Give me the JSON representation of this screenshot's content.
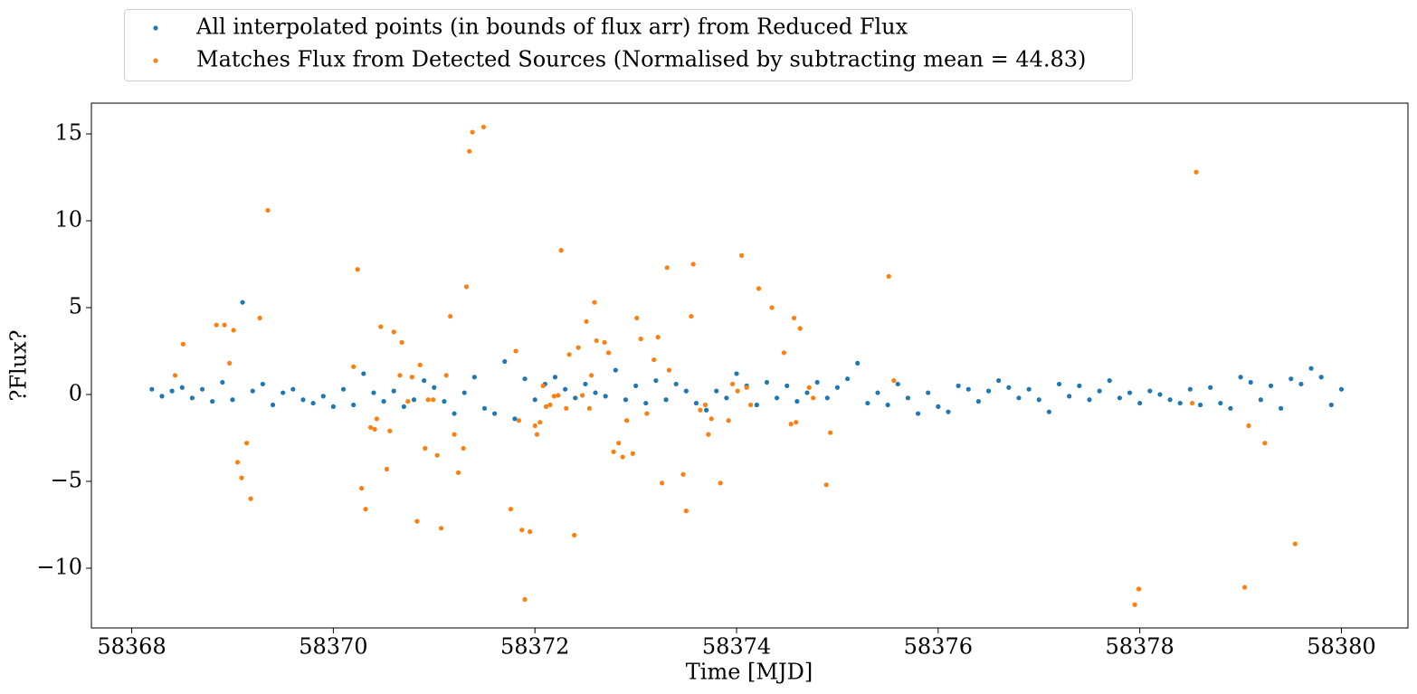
{
  "chart_data": {
    "type": "scatter",
    "xlabel": "Time [MJD]",
    "ylabel": "?Flux?",
    "xlim": [
      58367.6,
      58380.66
    ],
    "ylim": [
      -13.44,
      16.77
    ],
    "xticks": [
      58368,
      58370,
      58372,
      58374,
      58376,
      58378,
      58380
    ],
    "yticks": [
      {
        "value": -10,
        "label": "−10"
      },
      {
        "value": -5,
        "label": "−5"
      },
      0,
      5,
      10,
      15
    ],
    "legend": "upper center",
    "series": [
      {
        "name": "All interpolated points (in bounds of flux arr) from Reduced Flux",
        "color": "#1f77b4",
        "x": [
          58368.2,
          58368.3,
          58368.4,
          58368.5,
          58368.6,
          58368.7,
          58368.8,
          58368.9,
          58369.0,
          58369.1,
          58369.2,
          58369.3,
          58369.4,
          58369.5,
          58369.6,
          58369.7,
          58369.8,
          58369.9,
          58370.0,
          58370.1,
          58370.2,
          58370.3,
          58370.4,
          58370.5,
          58370.6,
          58370.7,
          58370.8,
          58370.9,
          58371.0,
          58371.1,
          58371.2,
          58371.3,
          58371.4,
          58371.5,
          58371.6,
          58371.7,
          58371.8,
          58371.9,
          58372.0,
          58372.1,
          58372.2,
          58372.3,
          58372.4,
          58372.5,
          58372.6,
          58372.7,
          58372.8,
          58372.9,
          58373.0,
          58373.1,
          58373.2,
          58373.3,
          58373.4,
          58373.5,
          58373.6,
          58373.7,
          58373.8,
          58373.9,
          58374.0,
          58374.1,
          58374.2,
          58374.3,
          58374.4,
          58374.5,
          58374.6,
          58374.7,
          58374.8,
          58374.9,
          58375.0,
          58375.1,
          58375.2,
          58375.3,
          58375.4,
          58375.5,
          58375.6,
          58375.7,
          58375.8,
          58375.9,
          58376.0,
          58376.1,
          58376.2,
          58376.3,
          58376.4,
          58376.5,
          58376.6,
          58376.7,
          58376.8,
          58376.9,
          58377.0,
          58377.1,
          58377.2,
          58377.3,
          58377.4,
          58377.5,
          58377.6,
          58377.7,
          58377.8,
          58377.9,
          58378.0,
          58378.1,
          58378.2,
          58378.3,
          58378.4,
          58378.5,
          58378.6,
          58378.7,
          58378.8,
          58378.9,
          58379.0,
          58379.1,
          58379.2,
          58379.3,
          58379.4,
          58379.5,
          58379.6,
          58379.7,
          58379.8,
          58379.9,
          58380.0
        ],
        "values": [
          0.3,
          -0.1,
          0.2,
          0.4,
          -0.2,
          0.3,
          -0.4,
          0.7,
          -0.3,
          5.3,
          0.2,
          0.6,
          -0.6,
          0.1,
          0.3,
          -0.3,
          -0.5,
          -0.1,
          -0.7,
          0.3,
          -0.6,
          1.2,
          0.1,
          -0.4,
          0.2,
          -0.7,
          -0.3,
          0.8,
          0.4,
          -0.4,
          -1.1,
          0.1,
          1.0,
          -0.8,
          -1.1,
          1.9,
          -1.4,
          0.9,
          -0.3,
          0.6,
          1.0,
          0.3,
          -0.2,
          0.6,
          0.1,
          -0.1,
          1.4,
          -0.3,
          0.5,
          -0.5,
          0.8,
          -0.3,
          0.6,
          0.2,
          -0.5,
          -0.9,
          0.2,
          -0.2,
          1.2,
          0.5,
          -0.6,
          0.7,
          -0.2,
          0.5,
          -0.4,
          0.1,
          0.7,
          -0.2,
          0.4,
          0.9,
          1.8,
          -0.5,
          0.1,
          -0.6,
          0.6,
          -0.2,
          -1.1,
          0.1,
          -0.7,
          -1.0,
          0.5,
          0.3,
          -0.4,
          0.2,
          0.8,
          0.4,
          -0.2,
          0.3,
          -0.3,
          -1.0,
          0.6,
          -0.1,
          0.5,
          -0.3,
          0.2,
          0.8,
          -0.2,
          0.1,
          -0.5,
          0.2,
          0.0,
          -0.3,
          -0.5,
          0.3,
          -0.6,
          0.4,
          -0.5,
          -0.8,
          1.0,
          0.7,
          -0.3,
          0.5,
          -0.8,
          0.9,
          0.6,
          1.5,
          1.0,
          -0.6,
          0.3
        ]
      },
      {
        "name": "Matches Flux from Detected Sources (Normalised by subtracting mean = 44.83)",
        "color": "#ff7f0e",
        "x": [
          58368.43,
          58368.51,
          58368.84,
          58368.92,
          58368.97,
          58369.01,
          58369.05,
          58369.09,
          58369.14,
          58369.18,
          58369.27,
          58369.35,
          58370.2,
          58370.24,
          58370.28,
          58370.32,
          58370.37,
          58370.41,
          58370.43,
          58370.47,
          58370.53,
          58370.56,
          58370.6,
          58370.66,
          58370.68,
          58370.74,
          58370.78,
          58370.83,
          58370.86,
          58370.91,
          58370.94,
          58370.99,
          58371.03,
          58371.07,
          58371.12,
          58371.16,
          58371.2,
          58371.24,
          58371.29,
          58371.32,
          58371.35,
          58371.38,
          58371.49,
          58371.76,
          58371.81,
          58371.84,
          58371.87,
          58371.9,
          58371.95,
          58372,
          58372.02,
          58372.05,
          58372.08,
          58372.11,
          58372.15,
          58372.19,
          58372.23,
          58372.26,
          58372.31,
          58372.34,
          58372.39,
          58372.43,
          58372.47,
          58372.51,
          58372.54,
          58372.56,
          58372.59,
          58372.61,
          58372.69,
          58372.73,
          58372.78,
          58372.83,
          58372.87,
          58372.91,
          58372.97,
          58373.01,
          58373.05,
          58373.11,
          58373.18,
          58373.22,
          58373.26,
          58373.31,
          58373.33,
          58373.47,
          58373.5,
          58373.55,
          58373.57,
          58373.64,
          58373.69,
          58373.72,
          58373.75,
          58373.84,
          58373.92,
          58373.96,
          58374.01,
          58374.05,
          58374.1,
          58374.14,
          58374.22,
          58374.35,
          58374.47,
          58374.54,
          58374.57,
          58374.59,
          58374.63,
          58374.72,
          58374.76,
          58374.89,
          58374.93,
          58375.51,
          58375.56,
          58377.95,
          58377.99,
          58378.52,
          58378.56,
          58379.04,
          58379.08,
          58379.24,
          58379.54
        ],
        "values": [
          1.1,
          2.9,
          4.0,
          4.0,
          1.8,
          3.7,
          -3.9,
          -4.8,
          -2.8,
          -6.0,
          4.4,
          10.6,
          1.6,
          7.2,
          -5.4,
          -6.6,
          -1.9,
          -2.0,
          -1.4,
          3.9,
          -4.3,
          -2.1,
          3.6,
          1.1,
          3.0,
          -0.4,
          1.0,
          -7.3,
          1.7,
          -3.1,
          -0.3,
          -0.3,
          -3.5,
          -7.7,
          1.1,
          4.5,
          -2.3,
          -4.5,
          -3.1,
          6.2,
          14.0,
          15.1,
          15.4,
          -6.6,
          2.5,
          -1.5,
          -7.8,
          -11.8,
          -7.9,
          -1.8,
          -2.3,
          -1.6,
          0.5,
          -0.7,
          -0.6,
          -0.1,
          -0.05,
          8.3,
          -0.8,
          2.3,
          -8.1,
          2.7,
          -0.05,
          4.2,
          -0.8,
          1.1,
          5.3,
          3.1,
          3.0,
          2.4,
          -3.3,
          -2.8,
          -3.6,
          -1.5,
          -3.4,
          4.4,
          3.2,
          -1.1,
          2.0,
          3.3,
          -5.1,
          7.3,
          1.4,
          -4.6,
          -6.7,
          4.5,
          7.5,
          -0.9,
          -0.6,
          -2.3,
          -1.4,
          -5.1,
          -1.5,
          0.6,
          0.2,
          8.0,
          0.4,
          -0.6,
          6.1,
          5.0,
          2.4,
          -1.7,
          4.4,
          -1.6,
          3.8,
          0.4,
          -0.2,
          -5.2,
          -2.2,
          6.8,
          0.8,
          -12.1,
          -11.2,
          -0.5,
          12.8,
          -11.1,
          -1.8,
          -2.8,
          -8.6
        ]
      }
    ]
  }
}
